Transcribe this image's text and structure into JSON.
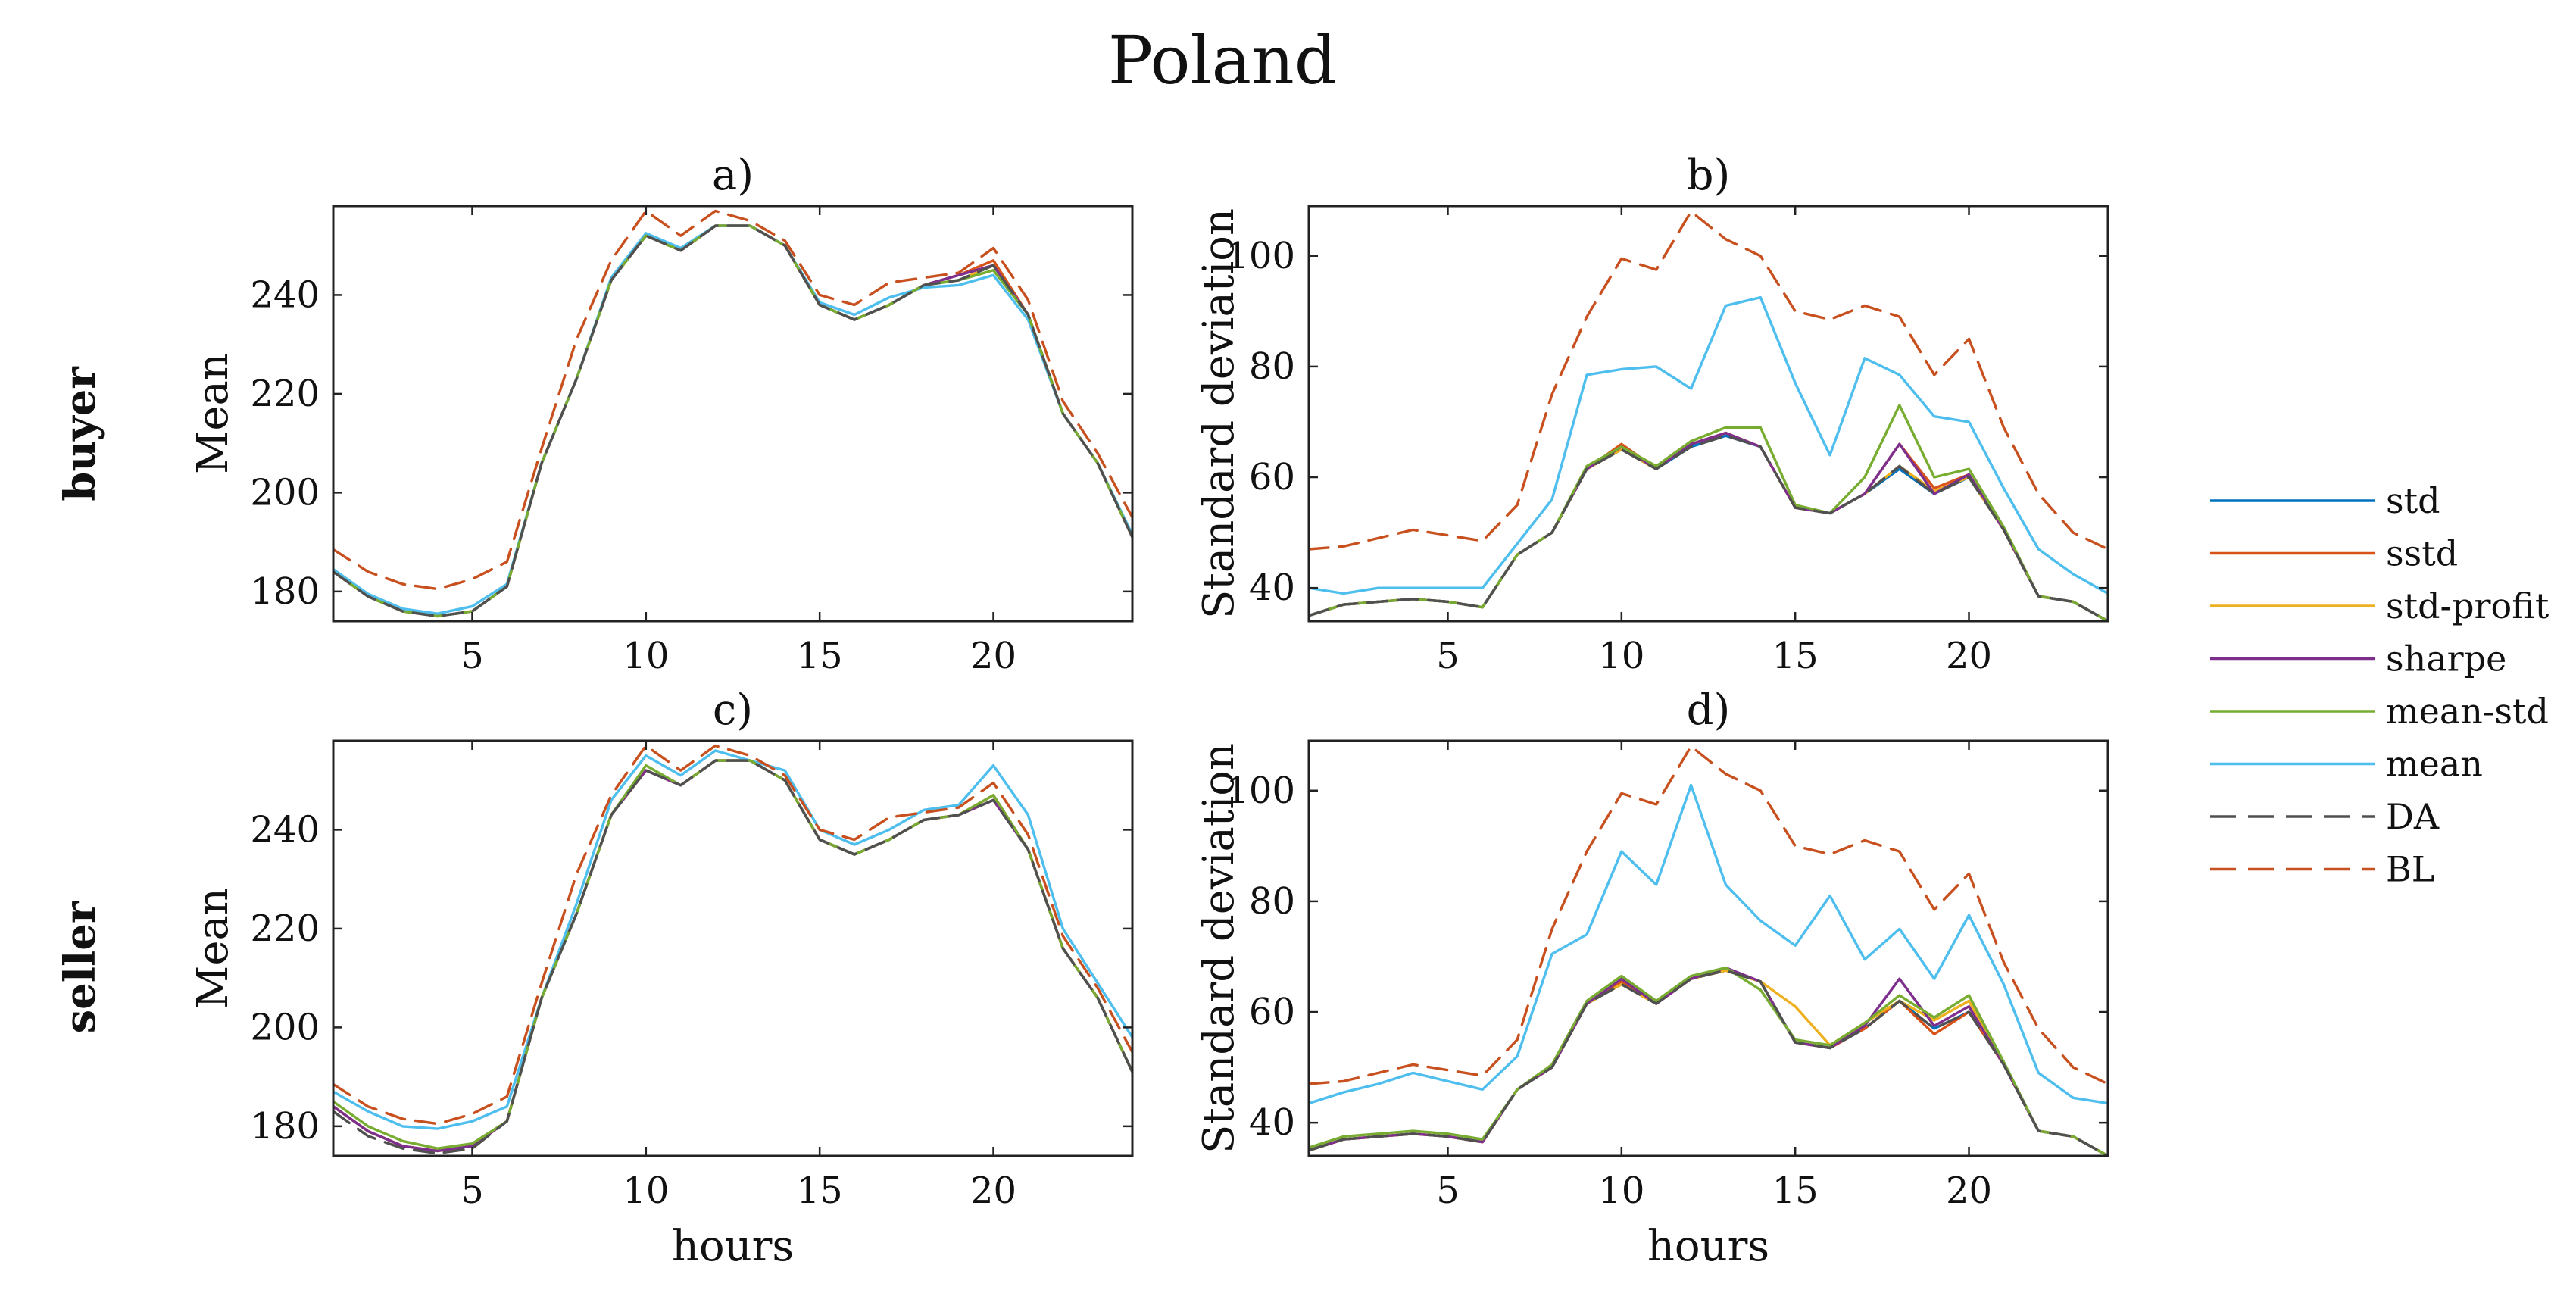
{
  "figure": {
    "title": "Poland",
    "row_labels": [
      "buyer",
      "seller"
    ]
  },
  "legend": {
    "placement": "right",
    "entries": [
      {
        "name": "std",
        "color": "#0072BD",
        "dashed": false
      },
      {
        "name": "sstd",
        "color": "#D95319",
        "dashed": false
      },
      {
        "name": "std-profit",
        "color": "#EDB120",
        "dashed": false
      },
      {
        "name": "sharpe",
        "color": "#7E2F8E",
        "dashed": false
      },
      {
        "name": "mean-std",
        "color": "#77AC30",
        "dashed": false
      },
      {
        "name": "mean",
        "color": "#4DBEEE",
        "dashed": false
      },
      {
        "name": "DA",
        "color": "#505050",
        "dashed": true
      },
      {
        "name": "BL",
        "color": "#C8501E",
        "dashed": true
      }
    ]
  },
  "chart_data": [
    {
      "type": "line",
      "title": "a)",
      "xlabel": "",
      "ylabel": "Mean",
      "xlim": [
        1,
        24
      ],
      "ylim": [
        174,
        258
      ],
      "xticks": [
        5,
        10,
        15,
        20
      ],
      "yticks": [
        180,
        200,
        220,
        240
      ],
      "x": [
        1,
        2,
        3,
        4,
        5,
        6,
        7,
        8,
        9,
        10,
        11,
        12,
        13,
        14,
        15,
        16,
        17,
        18,
        19,
        20,
        21,
        22,
        23,
        24
      ],
      "series": [
        {
          "name": "std",
          "values": [
            184,
            179,
            176,
            175,
            176,
            181,
            206,
            223,
            243,
            252,
            249,
            254,
            254,
            250,
            238,
            235,
            238,
            242,
            243,
            246,
            236,
            216,
            206,
            191
          ]
        },
        {
          "name": "sstd",
          "values": [
            184,
            179,
            176,
            175,
            176,
            181,
            206,
            223,
            243,
            252,
            249,
            254,
            254,
            250,
            238,
            235,
            238,
            242,
            244,
            247,
            236,
            216,
            206,
            191
          ]
        },
        {
          "name": "std-profit",
          "values": [
            184,
            179,
            176,
            175,
            176,
            181,
            206,
            223,
            243,
            252,
            249,
            254,
            254,
            250,
            238,
            235,
            238,
            242,
            243,
            246,
            236,
            216,
            206,
            191
          ]
        },
        {
          "name": "sharpe",
          "values": [
            184,
            179,
            176,
            175,
            176,
            181,
            206,
            223,
            243,
            252,
            249,
            254,
            254,
            250,
            238,
            235,
            238,
            242,
            244,
            246,
            236,
            216,
            206,
            191
          ]
        },
        {
          "name": "mean-std",
          "values": [
            184,
            179,
            176,
            175,
            176,
            181,
            206,
            223,
            243,
            252,
            249,
            254,
            254,
            250,
            238,
            235,
            238,
            242,
            243,
            245,
            236,
            216,
            206,
            191
          ]
        },
        {
          "name": "mean",
          "values": [
            184.5,
            179.5,
            176.5,
            175.5,
            177,
            181.5,
            206,
            223,
            243.5,
            252.5,
            249.5,
            254,
            254,
            250,
            238.5,
            236,
            239.5,
            241.5,
            242,
            244,
            235,
            216,
            206,
            191.5
          ]
        },
        {
          "name": "DA",
          "values": [
            184,
            179,
            176,
            175,
            176,
            181,
            206,
            223,
            243,
            252,
            249,
            254,
            254,
            250,
            238,
            235,
            238,
            242,
            243,
            246,
            236,
            216,
            206,
            191
          ]
        },
        {
          "name": "BL",
          "values": [
            188.5,
            184,
            181.5,
            180.5,
            182.5,
            186,
            209,
            231,
            247,
            257,
            252,
            257,
            255,
            251,
            240,
            238,
            242.5,
            243.5,
            244.5,
            249.5,
            239,
            218.5,
            208,
            195
          ]
        }
      ]
    },
    {
      "type": "line",
      "title": "b)",
      "xlabel": "",
      "ylabel": "Standard deviation",
      "xlim": [
        1,
        24
      ],
      "ylim": [
        34,
        109
      ],
      "xticks": [
        5,
        10,
        15,
        20
      ],
      "yticks": [
        40,
        60,
        80,
        100
      ],
      "x": [
        1,
        2,
        3,
        4,
        5,
        6,
        7,
        8,
        9,
        10,
        11,
        12,
        13,
        14,
        15,
        16,
        17,
        18,
        19,
        20,
        21,
        22,
        23,
        24
      ],
      "series": [
        {
          "name": "std",
          "values": [
            35,
            37,
            37.5,
            38,
            37.5,
            36.5,
            46,
            50,
            61.5,
            65,
            61.5,
            65.5,
            67.5,
            65.5,
            54.5,
            53.5,
            57,
            61.5,
            57,
            60,
            50.5,
            38.5,
            37.5,
            34
          ]
        },
        {
          "name": "sstd",
          "values": [
            35,
            37,
            37.5,
            38,
            37.5,
            36.5,
            46,
            50,
            61.5,
            66,
            61.5,
            66,
            68,
            65.5,
            54.5,
            53.5,
            57,
            66,
            58,
            60.5,
            50.5,
            38.5,
            37.5,
            34
          ]
        },
        {
          "name": "std-profit",
          "values": [
            35,
            37,
            37.5,
            38,
            37.5,
            36.5,
            46,
            50,
            61.5,
            65,
            61.5,
            66,
            68,
            65.5,
            54.5,
            53.5,
            57,
            62,
            57.5,
            60,
            50.5,
            38.5,
            37.5,
            34
          ]
        },
        {
          "name": "sharpe",
          "values": [
            35,
            37,
            37.5,
            38,
            37.5,
            36.5,
            46,
            50,
            61.5,
            65.5,
            61.5,
            66,
            68,
            65.5,
            54.5,
            53.5,
            57,
            66,
            57,
            60.5,
            50.5,
            38.5,
            37.5,
            34
          ]
        },
        {
          "name": "mean-std",
          "values": [
            35,
            37,
            37.5,
            38,
            37.5,
            36.5,
            46,
            50,
            62,
            65.5,
            62,
            66.5,
            69,
            69,
            55,
            53.5,
            60,
            73,
            60,
            61.5,
            51,
            38.5,
            37.5,
            34
          ]
        },
        {
          "name": "mean",
          "values": [
            40,
            39,
            40,
            40,
            40,
            40,
            48,
            56,
            78.5,
            79.5,
            80,
            76,
            91,
            92.5,
            77,
            64,
            81.5,
            78.5,
            71,
            70,
            58,
            47,
            42.5,
            39
          ]
        },
        {
          "name": "DA",
          "values": [
            35,
            37,
            37.5,
            38,
            37.5,
            36.5,
            46,
            50,
            61.5,
            65,
            61.5,
            65.5,
            67.5,
            65.5,
            54.5,
            53.5,
            57,
            62,
            57,
            60,
            50.5,
            38.5,
            37.5,
            34
          ]
        },
        {
          "name": "BL",
          "values": [
            47,
            47.5,
            49,
            50.5,
            49.5,
            48.5,
            55,
            75,
            89,
            99.5,
            97.5,
            108,
            103,
            100,
            90,
            88.5,
            91,
            89,
            78.5,
            85,
            69,
            57,
            50,
            47
          ]
        }
      ]
    },
    {
      "type": "line",
      "title": "c)",
      "xlabel": "hours",
      "ylabel": "Mean",
      "xlim": [
        1,
        24
      ],
      "ylim": [
        174,
        258
      ],
      "xticks": [
        5,
        10,
        15,
        20
      ],
      "yticks": [
        180,
        200,
        220,
        240
      ],
      "x": [
        1,
        2,
        3,
        4,
        5,
        6,
        7,
        8,
        9,
        10,
        11,
        12,
        13,
        14,
        15,
        16,
        17,
        18,
        19,
        20,
        21,
        22,
        23,
        24
      ],
      "series": [
        {
          "name": "std",
          "values": [
            184,
            179,
            176,
            175,
            176,
            181,
            206,
            223,
            243,
            252,
            249,
            254,
            254,
            250,
            238,
            235,
            238,
            242,
            243,
            246,
            236,
            216,
            206,
            191
          ]
        },
        {
          "name": "sstd",
          "values": [
            184,
            179,
            176,
            175,
            176,
            181,
            206,
            223,
            243,
            252,
            249,
            254,
            254,
            250,
            238,
            235,
            238,
            242,
            243,
            247,
            236,
            216,
            206,
            191
          ]
        },
        {
          "name": "std-profit",
          "values": [
            184,
            179,
            176,
            175,
            176,
            181,
            206,
            223,
            243,
            252,
            249,
            254,
            254,
            250,
            238,
            235,
            238,
            242,
            243,
            246,
            236,
            216,
            206,
            191
          ]
        },
        {
          "name": "sharpe",
          "values": [
            184,
            179,
            176,
            175,
            176,
            181,
            206,
            223,
            243,
            252,
            249,
            254,
            254,
            250,
            238,
            235,
            238,
            242,
            243,
            246,
            236,
            216,
            206,
            191
          ]
        },
        {
          "name": "mean-std",
          "values": [
            185,
            180,
            177,
            175.5,
            176.5,
            181,
            206,
            223,
            243,
            253,
            249,
            254,
            254,
            250,
            238,
            235,
            238,
            242,
            243,
            247,
            236,
            216,
            206,
            191
          ]
        },
        {
          "name": "mean",
          "values": [
            187,
            183,
            180,
            179.5,
            181,
            184,
            206,
            225,
            246,
            255,
            251,
            256,
            254,
            252,
            240,
            237,
            240,
            244,
            245,
            253,
            243,
            220,
            209,
            198
          ]
        },
        {
          "name": "DA",
          "values": [
            183,
            178,
            175.5,
            174.5,
            175.5,
            181,
            206,
            223,
            243,
            252,
            249,
            254,
            254,
            250,
            238,
            235,
            238,
            242,
            243,
            246,
            236,
            216,
            206,
            191
          ]
        },
        {
          "name": "BL",
          "values": [
            188.5,
            184,
            181.5,
            180.5,
            182.5,
            186,
            209,
            231,
            247,
            257,
            252,
            257,
            255,
            251,
            240,
            238,
            242.5,
            243.5,
            244.5,
            249.5,
            239,
            218.5,
            208,
            195
          ]
        }
      ]
    },
    {
      "type": "line",
      "title": "d)",
      "xlabel": "hours",
      "ylabel": "Standard deviation",
      "xlim": [
        1,
        24
      ],
      "ylim": [
        34,
        109
      ],
      "xticks": [
        5,
        10,
        15,
        20
      ],
      "yticks": [
        40,
        60,
        80,
        100
      ],
      "x": [
        1,
        2,
        3,
        4,
        5,
        6,
        7,
        8,
        9,
        10,
        11,
        12,
        13,
        14,
        15,
        16,
        17,
        18,
        19,
        20,
        21,
        22,
        23,
        24
      ],
      "series": [
        {
          "name": "std",
          "values": [
            35,
            37,
            37.5,
            38,
            37.5,
            36.5,
            46,
            50,
            61.5,
            65,
            61.5,
            66,
            67.5,
            65.5,
            54.5,
            53.5,
            57,
            62,
            57,
            60,
            50.5,
            38.5,
            37.5,
            34
          ]
        },
        {
          "name": "sstd",
          "values": [
            35,
            37,
            37.5,
            38,
            37.5,
            36.5,
            46,
            50,
            61.5,
            65.5,
            61.5,
            66,
            67.5,
            65.5,
            54.5,
            53.5,
            57,
            62,
            56,
            60,
            50.5,
            38.5,
            37.5,
            34
          ]
        },
        {
          "name": "std-profit",
          "values": [
            35,
            37,
            37.5,
            38,
            37.5,
            36.5,
            46,
            50,
            61.5,
            65,
            61.5,
            66,
            67.5,
            65.5,
            61,
            54,
            58,
            62,
            58.5,
            62,
            50.5,
            38.5,
            37.5,
            34
          ]
        },
        {
          "name": "sharpe",
          "values": [
            35,
            37,
            37.5,
            38,
            37.5,
            36.5,
            46,
            50,
            61.5,
            66,
            61.5,
            66,
            68,
            65.5,
            54.5,
            53.5,
            57.5,
            66,
            57.5,
            61,
            50.5,
            38.5,
            37.5,
            34
          ]
        },
        {
          "name": "mean-std",
          "values": [
            35.5,
            37.5,
            38,
            38.5,
            38,
            37,
            46,
            50.5,
            62,
            66.5,
            62,
            66.5,
            68,
            64,
            55,
            54,
            58,
            63,
            59,
            63,
            51,
            38.5,
            37.5,
            34
          ]
        },
        {
          "name": "mean",
          "values": [
            43.5,
            45.5,
            47,
            49,
            47.5,
            46,
            52,
            70.5,
            74,
            89,
            83,
            101,
            83,
            76.5,
            72,
            81,
            69.5,
            75,
            66,
            77.5,
            65,
            49,
            44.5,
            43.5
          ]
        },
        {
          "name": "DA",
          "values": [
            35,
            37,
            37.5,
            38,
            37.5,
            36.5,
            46,
            50,
            61.5,
            65,
            61.5,
            66,
            67.5,
            65.5,
            54.5,
            53.5,
            57,
            62,
            57,
            60,
            50.5,
            38.5,
            37.5,
            34
          ]
        },
        {
          "name": "BL",
          "values": [
            47,
            47.5,
            49,
            50.5,
            49.5,
            48.5,
            55,
            75,
            89,
            99.5,
            97.5,
            108,
            103,
            100,
            90,
            88.5,
            91,
            89,
            78.5,
            85,
            69,
            57,
            50,
            47
          ]
        }
      ]
    }
  ]
}
